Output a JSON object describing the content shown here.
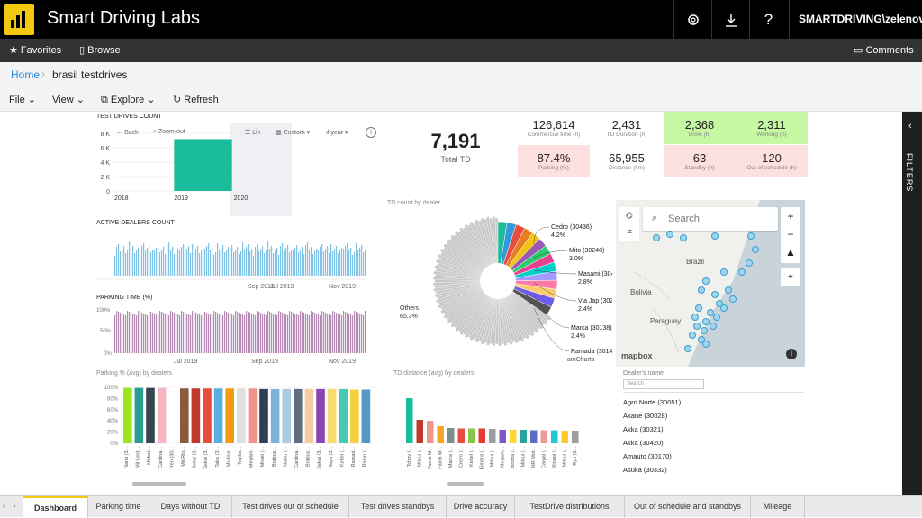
{
  "app": {
    "title": "Smart Driving Labs",
    "user": "SMARTDRIVING\\zelenov"
  },
  "nav": {
    "favorites": "Favorites",
    "browse": "Browse",
    "comments": "Comments"
  },
  "breadcrumb": {
    "home": "Home",
    "current": "brasil testdrives"
  },
  "toolbar": {
    "file": "File",
    "view": "View",
    "explore": "Explore",
    "refresh": "Refresh"
  },
  "filters_label": "FILTERS",
  "colors": {
    "accent": "#f2c811",
    "teal": "#1abc9c",
    "green_kpi": "#c6f7a3",
    "red_kpi": "#fde0e0"
  },
  "test_drives_count": {
    "title": "TEST DRIVES COUNT",
    "controls": {
      "back": "Back",
      "zoomout": "Zoom-out",
      "lin": "Lin",
      "custom": "Custom",
      "year": "year"
    }
  },
  "active_dealers": {
    "title": "ACTIVE DEALERS COUNT",
    "xticks": [
      "Jul 2019",
      "Sep 2019",
      "Nov 2019"
    ]
  },
  "parking_time": {
    "title": "PARKING TIME (%)",
    "xticks": [
      "Jul 2019",
      "Sep 2019",
      "Nov 2019"
    ],
    "yticks": [
      "100%",
      "50%",
      "0%"
    ]
  },
  "total_td": {
    "value": "7,191",
    "label": "Total TD"
  },
  "kpis": [
    {
      "value": "126,614",
      "label": "Commercial time (h)",
      "bg": "none"
    },
    {
      "value": "2,431",
      "label": "TD Duration (h)",
      "bg": "none"
    },
    {
      "value": "2,368",
      "label": "Drive (h)",
      "bg": "green"
    },
    {
      "value": "2,311",
      "label": "Working (h)",
      "bg": "green"
    },
    {
      "value": "87.4%",
      "label": "Parking (%)",
      "bg": "red"
    },
    {
      "value": "65,955",
      "label": "Distance (km)",
      "bg": "none"
    },
    {
      "value": "63",
      "label": "Standby (h)",
      "bg": "red"
    },
    {
      "value": "120",
      "label": "Out of schedule (h)",
      "bg": "red"
    }
  ],
  "donut": {
    "title": "TD count by dealer",
    "others_label": "Others",
    "others_pct": "65.3%",
    "labels": [
      {
        "name": "Cedro (30436)",
        "pct": "4.2%"
      },
      {
        "name": "Mito (30240)",
        "pct": "3.0%"
      },
      {
        "name": "Masami (30413)",
        "pct": "2.8%"
      },
      {
        "name": "Via Jap (30232)",
        "pct": "2.4%"
      },
      {
        "name": "Marca (30138)",
        "pct": "2.4%"
      },
      {
        "name": "Ramada (30142)",
        "pct": ""
      }
    ],
    "credit": "amCharts"
  },
  "map": {
    "search_placeholder": "Search",
    "country_labels": [
      "Brazil",
      "Bolivia",
      "Paraguay"
    ],
    "credit": "mapbox"
  },
  "parking_by_dealers": {
    "title": "Parking % (avg) by dealers",
    "yticks": [
      "100%",
      "80%",
      "60%",
      "40%",
      "20%",
      "0%"
    ]
  },
  "distance_by_dealers": {
    "title": "TD distance (avg) by dealers"
  },
  "dealer_list": {
    "header": "Dealer's name",
    "search_placeholder": "Search",
    "items": [
      "Agro Norte (30051)",
      "Akane (30028)",
      "Akka (30321)",
      "Akka (30420)",
      "Amauto (30170)",
      "Asuka (30332)"
    ]
  },
  "tabs": [
    "Dashboard",
    "Parking time",
    "Days without TD",
    "Test drives out of schedule",
    "Test drives standbys",
    "Drive accuracy",
    "TestDrive distributions",
    "Out of schedule and standbys",
    "Mileage"
  ],
  "chart_data": [
    {
      "type": "bar",
      "title": "TEST DRIVES COUNT",
      "categories": [
        "2018",
        "2019",
        "2020"
      ],
      "values": [
        0,
        7191,
        0
      ],
      "yticks": [
        "8 K",
        "6 K",
        "4 K",
        "2 K",
        "0"
      ],
      "ylim": [
        0,
        8000
      ]
    },
    {
      "type": "bar",
      "title": "Parking % (avg) by dealers",
      "categories": [
        "Nami (3...",
        "Mit Lest...",
        "Mitfort...",
        "Cardina...",
        "Yen (30...",
        "Mit Rio...",
        "Kotai (3...",
        "Sekai (3...",
        "Taka (3...",
        "Multica...",
        "Teijiko...",
        "Megam...",
        "Mivati (...",
        "Brabus...",
        "Nakiu (...",
        "Cardina...",
        "Brabus...",
        "Sekai (3...",
        "Naya (3...",
        "Kettel (...",
        "Ramad...",
        "Raion (..."
      ],
      "values": [
        99,
        99,
        99,
        99,
        99,
        98,
        98,
        98,
        98,
        98,
        98,
        98,
        97,
        97,
        97,
        97,
        97,
        97,
        97,
        97,
        96,
        96
      ],
      "ylim": [
        0,
        100
      ]
    },
    {
      "type": "bar",
      "title": "TD distance (avg) by dealers",
      "categories": [
        "Tchoy (...",
        "Mitsui (...",
        "Fama M...",
        "Fama M...",
        "Marca (...",
        "Cedro (...",
        "Kettel (...",
        "Kimera (...",
        "Mitsui (...",
        "Megam...",
        "Brizza (...",
        "Mitsui (...",
        "NR Mot...",
        "Carpal (...",
        "Xingqi (...",
        "Mitsui (...",
        "Ryu (3..."
      ],
      "values": [
        100,
        52,
        50,
        38,
        34,
        33,
        33,
        33,
        32,
        30,
        30,
        30,
        29,
        29,
        29,
        28,
        28
      ]
    }
  ]
}
